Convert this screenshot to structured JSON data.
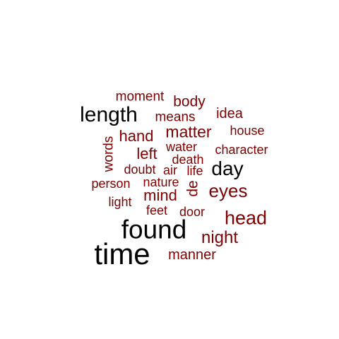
{
  "colors": {
    "primary": "#000000",
    "secondary": "#7f0000"
  },
  "words": [
    {
      "text": "time",
      "tone": "primary"
    },
    {
      "text": "found",
      "tone": "primary"
    },
    {
      "text": "length",
      "tone": "primary"
    },
    {
      "text": "day",
      "tone": "primary"
    },
    {
      "text": "head",
      "tone": "secondary"
    },
    {
      "text": "eyes",
      "tone": "secondary"
    },
    {
      "text": "night",
      "tone": "secondary"
    },
    {
      "text": "matter",
      "tone": "secondary"
    },
    {
      "text": "hand",
      "tone": "secondary"
    },
    {
      "text": "left",
      "tone": "secondary"
    },
    {
      "text": "mind",
      "tone": "secondary"
    },
    {
      "text": "body",
      "tone": "secondary"
    },
    {
      "text": "manner",
      "tone": "secondary"
    },
    {
      "text": "idea",
      "tone": "secondary"
    },
    {
      "text": "moment",
      "tone": "secondary"
    },
    {
      "text": "means",
      "tone": "secondary"
    },
    {
      "text": "house",
      "tone": "secondary"
    },
    {
      "text": "water",
      "tone": "secondary"
    },
    {
      "text": "character",
      "tone": "secondary"
    },
    {
      "text": "death",
      "tone": "secondary"
    },
    {
      "text": "words",
      "tone": "secondary"
    },
    {
      "text": "doubt",
      "tone": "secondary"
    },
    {
      "text": "air",
      "tone": "secondary"
    },
    {
      "text": "life",
      "tone": "secondary"
    },
    {
      "text": "person",
      "tone": "secondary"
    },
    {
      "text": "nature",
      "tone": "secondary"
    },
    {
      "text": "de",
      "tone": "secondary"
    },
    {
      "text": "light",
      "tone": "secondary"
    },
    {
      "text": "feet",
      "tone": "secondary"
    },
    {
      "text": "door",
      "tone": "secondary"
    }
  ]
}
